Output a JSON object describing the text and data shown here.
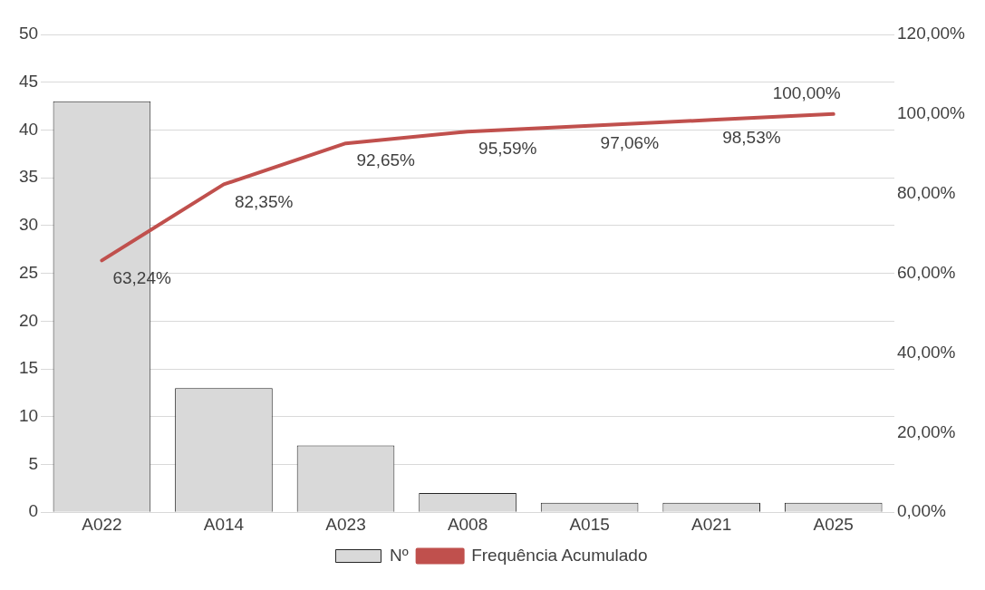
{
  "chart_data": {
    "type": "bar",
    "categories": [
      "A022",
      "A014",
      "A023",
      "A008",
      "A015",
      "A021",
      "A025"
    ],
    "series": [
      {
        "name": "Nº",
        "color": "#d9d9d9",
        "values": [
          43,
          13,
          7,
          2,
          1,
          1,
          1
        ]
      },
      {
        "name": "Frequência Acumulado",
        "type": "line",
        "axis": "y2",
        "color": "#c0504d",
        "values": [
          63.24,
          82.35,
          92.65,
          95.59,
          97.06,
          98.53,
          100
        ],
        "value_labels": [
          "63,24%",
          "82,35%",
          "92,65%",
          "95,59%",
          "97,06%",
          "98,53%",
          "100,00%"
        ]
      }
    ],
    "ylim": [
      0,
      50
    ],
    "yticks": [
      0,
      5,
      10,
      15,
      20,
      25,
      30,
      35,
      40,
      45,
      50
    ],
    "y2lim": [
      0,
      120
    ],
    "y2ticks": [
      {
        "value": 0,
        "label": "0,00%"
      },
      {
        "value": 20,
        "label": "20,00%"
      },
      {
        "value": 40,
        "label": "40,00%"
      },
      {
        "value": 60,
        "label": "60,00%"
      },
      {
        "value": 80,
        "label": "80,00%"
      },
      {
        "value": 100,
        "label": "100,00%"
      },
      {
        "value": 120,
        "label": "120,00%"
      }
    ],
    "grid": "y",
    "legend": "bottom",
    "marker": "none",
    "line_style": "solid"
  }
}
